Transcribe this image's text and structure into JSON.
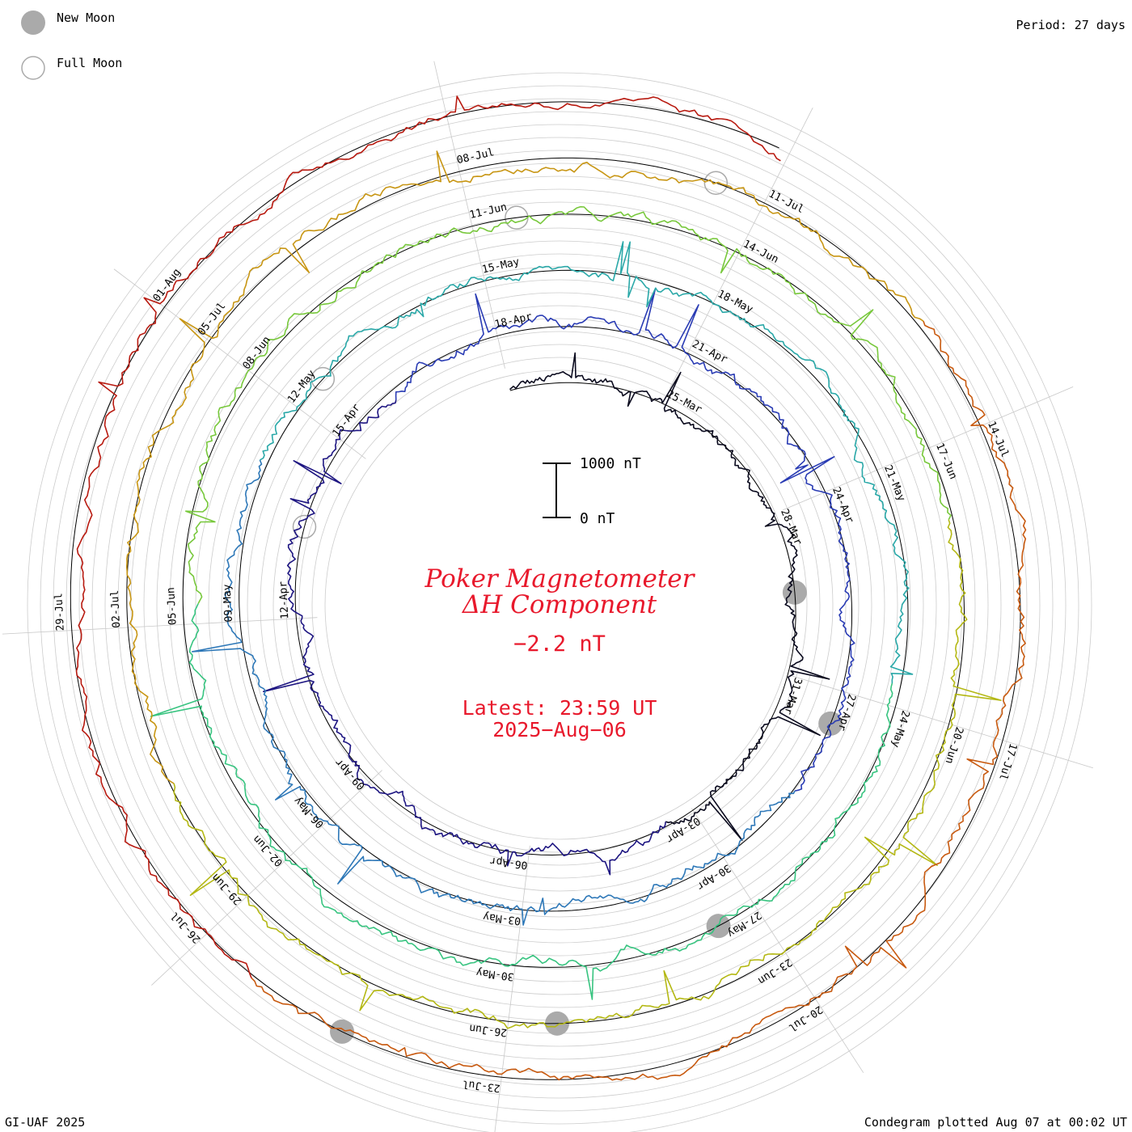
{
  "legend": {
    "new_moon_label": "New Moon",
    "full_moon_label": "Full Moon",
    "new_moon_color": "#aaaaaa",
    "full_moon_color": "#aaaaaa"
  },
  "period_label": "Period: 27 days",
  "footer_left": "GI-UAF 2025",
  "footer_right": "Condegram plotted Aug 07 at 00:02 UT",
  "center": {
    "title_line1": "Poker Magnetometer",
    "title_line2": "ΔH Component",
    "current_value": "−2.2 nT",
    "latest_line1": "Latest: 23:59 UT",
    "latest_line2": "2025−Aug−06",
    "text_color": "#e8192c"
  },
  "scale_bar": {
    "top_label": "1000 nT",
    "bottom_label": "0 nT",
    "value_nT": 1000
  },
  "chart_data": {
    "type": "condegram-spiral",
    "title": "Poker Magnetometer ΔH Component",
    "period_days": 27,
    "start_date": "2025-03-22",
    "end_date": "2025-08-06",
    "units": "nT",
    "latest_value_nT": -2.2,
    "date_labels": [
      "25-Mar",
      "28-Mar",
      "31-Mar",
      "03-Apr",
      "06-Apr",
      "09-Apr",
      "12-Apr",
      "15-Apr",
      "18-Apr",
      "21-Apr",
      "24-Apr",
      "27-Apr",
      "30-Apr",
      "03-May",
      "06-May",
      "09-May",
      "12-May",
      "15-May",
      "18-May",
      "21-May",
      "24-May",
      "27-May",
      "30-May",
      "02-Jun",
      "05-Jun",
      "08-Jun",
      "11-Jun",
      "14-Jun",
      "17-Jun",
      "20-Jun",
      "23-Jun",
      "26-Jun",
      "29-Jun",
      "02-Jul",
      "05-Jul",
      "08-Jul",
      "11-Jul",
      "14-Jul",
      "17-Jul",
      "20-Jul",
      "23-Jul",
      "26-Jul",
      "29-Jul",
      "01-Aug"
    ],
    "new_moons": [
      "2025-03-29",
      "2025-04-27",
      "2025-05-27",
      "2025-06-25",
      "2025-07-24"
    ],
    "full_moons": [
      "2025-04-13",
      "2025-05-12",
      "2025-06-11",
      "2025-07-10"
    ],
    "series_colors": [
      "#0a0a1e",
      "#1e1682",
      "#2a3cb4",
      "#2e78b8",
      "#2aa8a8",
      "#38c480",
      "#78c83c",
      "#b4b814",
      "#c89614",
      "#c85a10",
      "#b81a10"
    ]
  }
}
